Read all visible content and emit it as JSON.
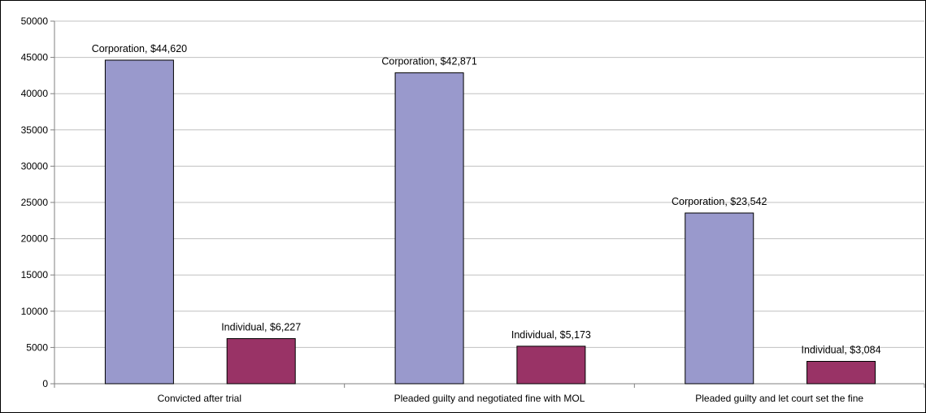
{
  "chart_data": {
    "type": "bar",
    "title": "",
    "xlabel": "",
    "ylabel": "",
    "categories": [
      "Convicted after trial",
      "Pleaded guilty and negotiated fine with MOL",
      "Pleaded guilty and let court set the fine"
    ],
    "series": [
      {
        "name": "Corporation",
        "values": [
          44620,
          42871,
          23542
        ],
        "color": "#9999cc",
        "labels": [
          "Corporation, $44,620",
          "Corporation, $42,871",
          "Corporation, $23,542"
        ]
      },
      {
        "name": "Individual",
        "values": [
          6227,
          5173,
          3084
        ],
        "color": "#993366",
        "labels": [
          "Individual, $6,227",
          "Individual, $5,173",
          "Individual, $3,084"
        ]
      }
    ],
    "ylim": [
      0,
      50000
    ],
    "yticks": [
      "0",
      "5000",
      "10000",
      "15000",
      "20000",
      "25000",
      "30000",
      "35000",
      "40000",
      "45000",
      "50000"
    ],
    "grid": true,
    "legend": "none"
  }
}
